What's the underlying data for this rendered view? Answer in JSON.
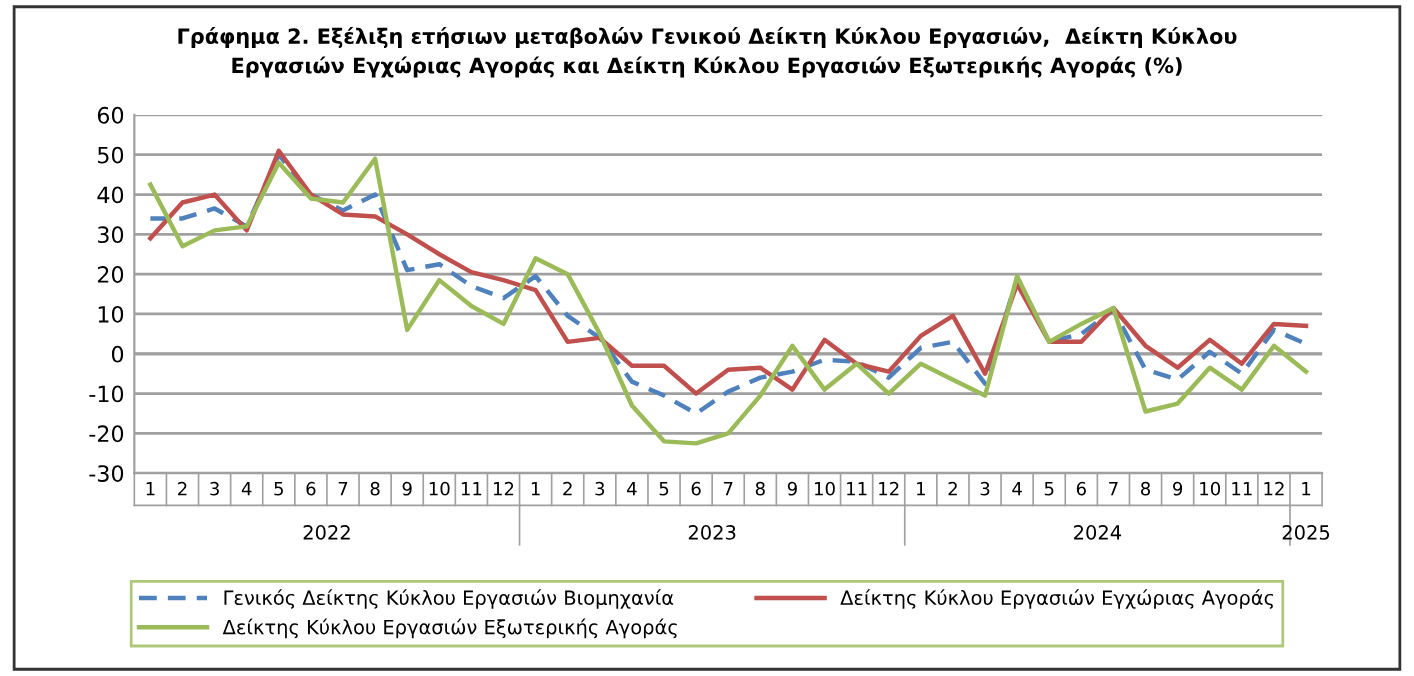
{
  "chart_data": {
    "type": "line",
    "title": "Γράφημα 2. Εξέλιξη ετήσιων μεταβολών Γενικού Δείκτη Κύκλου Εργασιών,  Δείκτη Κύκλου\nΕργασιών Εγχώριας Αγοράς και Δείκτη Κύκλου Εργασιών Εξωτερικής Αγοράς (%)",
    "categories": [
      "1",
      "2",
      "3",
      "4",
      "5",
      "6",
      "7",
      "8",
      "9",
      "10",
      "11",
      "12",
      "1",
      "2",
      "3",
      "4",
      "5",
      "6",
      "7",
      "8",
      "9",
      "10",
      "11",
      "12",
      "1",
      "2",
      "3",
      "4",
      "5",
      "6",
      "7",
      "8",
      "9",
      "10",
      "11",
      "12",
      "1"
    ],
    "annotations": [
      "2022",
      "2023",
      "2024",
      "2025"
    ],
    "series": [
      {
        "name": "Γενικός Δείκτης Κύκλου Εργασιών Βιομηχανία",
        "color": "#4f81bd",
        "line_style": "dashed",
        "values": [
          34,
          34,
          36.5,
          32,
          50,
          40,
          36,
          40,
          21,
          22.5,
          17,
          14,
          19.5,
          9.5,
          4,
          -7,
          -10.5,
          -15,
          -9.5,
          -6,
          -4.5,
          -1.5,
          -2,
          -6,
          1.5,
          3,
          -7.5,
          19,
          3,
          5,
          11,
          -4,
          -6.5,
          0.5,
          -5,
          6,
          2.5
        ]
      },
      {
        "name": "Δείκτης Κύκλου Εργασιών Εγχώριας Αγοράς",
        "color": "#c0504d",
        "line_style": "solid",
        "values": [
          29,
          38,
          40,
          31,
          51,
          40,
          35,
          34.5,
          30,
          25,
          20.5,
          18.5,
          16,
          3,
          4,
          -3,
          -3,
          -10,
          -4,
          -3.5,
          -9,
          3.5,
          -2.5,
          -4.5,
          4.5,
          9.5,
          -5,
          17.5,
          3,
          3,
          11.5,
          2,
          -3.5,
          3.5,
          -2.5,
          7.5,
          7
        ]
      },
      {
        "name": "Δείκτης Κύκλου Εργασιών Εξωτερικής Αγοράς",
        "color": "#9bbb59",
        "line_style": "solid",
        "values": [
          42.5,
          27,
          31,
          32,
          48,
          39,
          38,
          49,
          6,
          18.5,
          12,
          7.5,
          24,
          20,
          5,
          -13,
          -22,
          -22.5,
          -20,
          -10.5,
          2,
          -9,
          -2.5,
          -10,
          -2.5,
          -6.5,
          -10.5,
          19.5,
          3,
          7.5,
          11.5,
          -14.5,
          -12.5,
          -3.5,
          -9,
          2,
          -4.5
        ]
      }
    ],
    "ylim": [
      -30,
      60
    ],
    "yticks": [
      -30,
      -20,
      -10,
      0,
      10,
      20,
      30,
      40,
      50,
      60
    ],
    "grid": "y",
    "legend": "bottom",
    "marker": "none"
  }
}
